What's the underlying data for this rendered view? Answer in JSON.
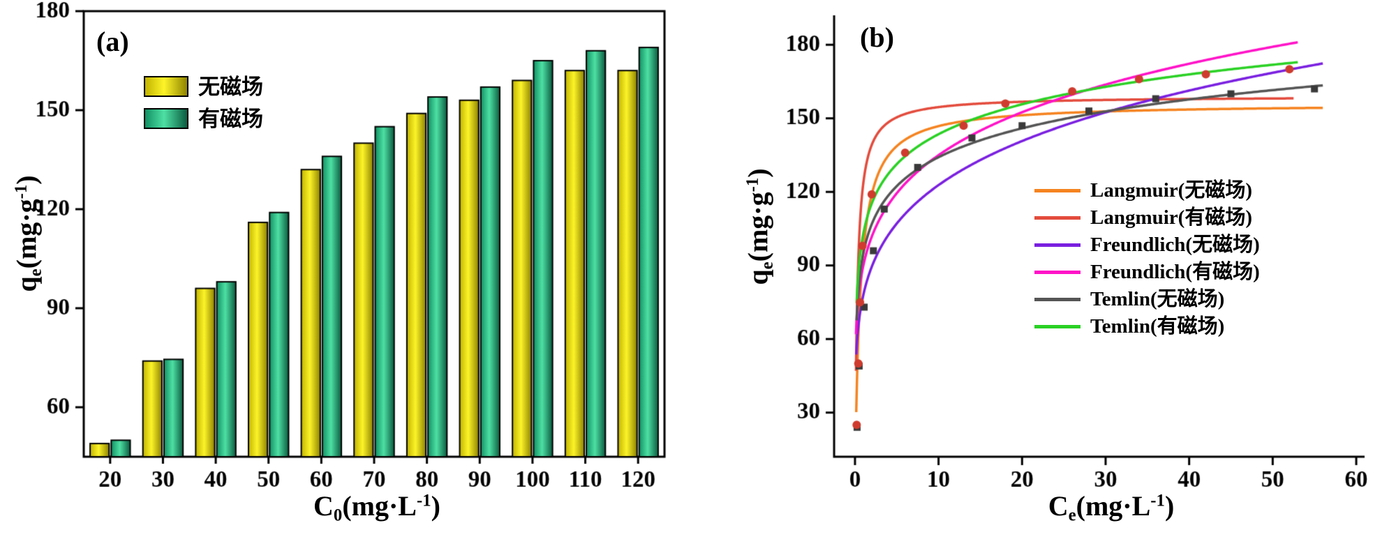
{
  "panels": {
    "a": "(a)",
    "b": "(b)"
  },
  "labels": {
    "qe": {
      "base": "q",
      "sub": "e",
      "unit": "(mg·g",
      "sup": "-1",
      "close": ")"
    },
    "c0": {
      "base": "C",
      "sub": "0",
      "unit": "(mg·L",
      "sup": "-1",
      "close": ")"
    },
    "ce": {
      "base": "C",
      "sub": "e",
      "unit": "(mg·L",
      "sup": "-1",
      "close": ")"
    }
  },
  "colors": {
    "axis": "#000000",
    "background": "#ffffff"
  },
  "chart_data": [
    {
      "type": "bar",
      "panel": "(a)",
      "title": "",
      "xlabel": "C0(mg·L-1)",
      "ylabel": "qe(mg·g-1)",
      "categories": [
        20,
        30,
        40,
        50,
        60,
        70,
        80,
        90,
        100,
        110,
        120
      ],
      "series": [
        {
          "name": "无磁场",
          "colors": [
            "#c2b400",
            "#fdf429",
            "#8f8400"
          ],
          "values": [
            49,
            74,
            96,
            116,
            132,
            140,
            149,
            153,
            159,
            162,
            162
          ]
        },
        {
          "name": "有磁场",
          "colors": [
            "#129164",
            "#4ee0a4",
            "#0a5c40"
          ],
          "values": [
            50,
            74.5,
            98,
            119,
            136,
            145,
            154,
            157,
            165,
            168,
            169
          ]
        }
      ],
      "ylim": [
        45,
        180
      ],
      "yticks": [
        60,
        90,
        120,
        150,
        180
      ],
      "grid": false,
      "legend_position": "upper-left-inside"
    },
    {
      "type": "line",
      "panel": "(b)",
      "title": "",
      "xlabel": "Ce(mg·L-1)",
      "ylabel": "qe(mg·g-1)",
      "xlim": [
        -2.5,
        61
      ],
      "ylim": [
        12,
        192
      ],
      "xticks": [
        0,
        10,
        20,
        30,
        40,
        50,
        60
      ],
      "yticks": [
        30,
        60,
        90,
        120,
        150,
        180
      ],
      "grid": false,
      "legend_position": "center-right-inside",
      "curves": [
        {
          "name": "Langmuir(无磁场)",
          "color": "#f5831f",
          "model": "langmuir",
          "qm": 156,
          "k": 1.6,
          "xrange": [
            0.15,
            56
          ]
        },
        {
          "name": "Langmuir(有磁场)",
          "color": "#e34b3c",
          "model": "langmuir",
          "qm": 159,
          "k": 3.5,
          "xrange": [
            0.12,
            52.5
          ]
        },
        {
          "name": "Freundlich(无磁场)",
          "color": "#7a1fe0",
          "model": "freundlich",
          "kf": 78,
          "ninv": 0.197,
          "xrange": [
            0.15,
            56
          ]
        },
        {
          "name": "Freundlich(有磁场)",
          "color": "#ff12c8",
          "model": "freundlich",
          "kf": 90,
          "ninv": 0.176,
          "xrange": [
            0.12,
            53
          ]
        },
        {
          "name": "Temlin(无磁场)",
          "color": "#555555",
          "model": "temkin",
          "a": 95,
          "b": 17,
          "xrange": [
            0.2,
            56
          ]
        },
        {
          "name": "Temlin(有磁场)",
          "color": "#2ad124",
          "model": "temkin",
          "a": 103,
          "b": 17.6,
          "xrange": [
            0.2,
            53
          ]
        }
      ],
      "scatter": [
        {
          "name": "无磁场",
          "marker": "square",
          "color": "#3a3a3a",
          "points": [
            [
              0.25,
              24
            ],
            [
              0.5,
              49
            ],
            [
              1.1,
              73
            ],
            [
              2.2,
              96
            ],
            [
              3.5,
              113
            ],
            [
              7.5,
              130
            ],
            [
              14,
              142
            ],
            [
              20,
              147
            ],
            [
              28,
              153
            ],
            [
              36,
              158
            ],
            [
              45,
              160
            ],
            [
              55,
              162
            ]
          ]
        },
        {
          "name": "有磁场",
          "marker": "circle",
          "color": "#cf3b2e",
          "points": [
            [
              0.2,
              25
            ],
            [
              0.4,
              50
            ],
            [
              0.6,
              75
            ],
            [
              0.9,
              98
            ],
            [
              2,
              119
            ],
            [
              6,
              136
            ],
            [
              13,
              147
            ],
            [
              18,
              156
            ],
            [
              26,
              161
            ],
            [
              34,
              166
            ],
            [
              42,
              168
            ],
            [
              52,
              170
            ]
          ]
        }
      ]
    }
  ]
}
